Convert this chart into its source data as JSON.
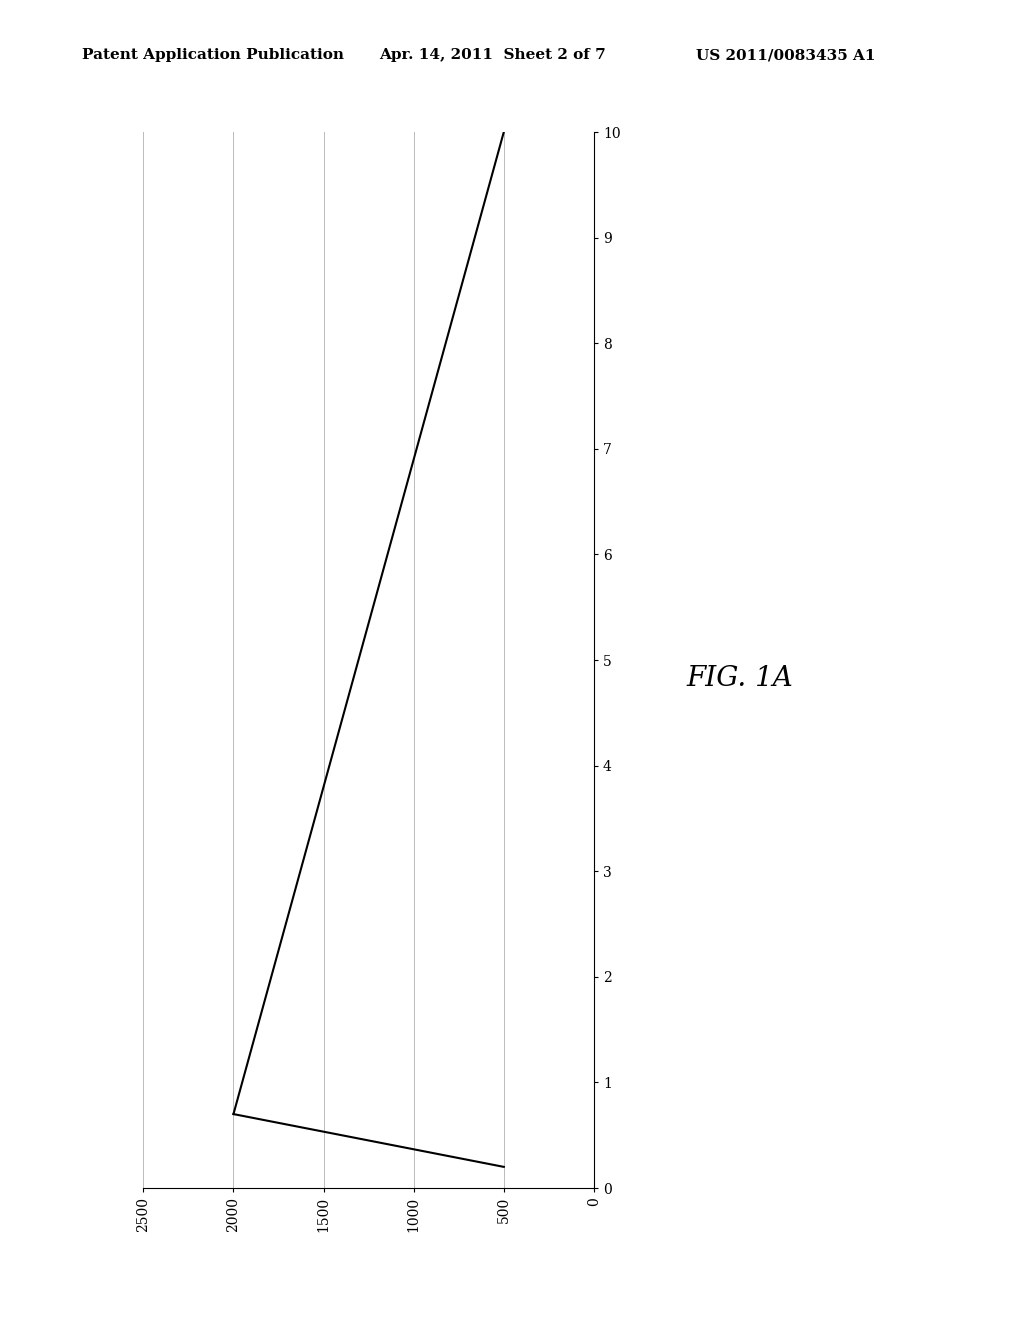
{
  "header_left": "Patent Application Publication",
  "header_middle": "Apr. 14, 2011  Sheet 2 of 7",
  "header_right": "US 2011/0083435 A1",
  "fig_label": "FIG. 1A",
  "x_ticks": [
    0,
    500,
    1000,
    1500,
    2000,
    2500
  ],
  "y_ticks": [
    0,
    1,
    2,
    3,
    4,
    5,
    6,
    7,
    8,
    9,
    10
  ],
  "xlim": [
    0,
    2500
  ],
  "ylim": [
    0,
    10
  ],
  "line1_x": [
    2000,
    500
  ],
  "line1_y": [
    0.7,
    10
  ],
  "line2_x": [
    2000,
    500
  ],
  "line2_y": [
    0.7,
    0.2
  ],
  "line_color": "#000000",
  "bg_color": "#ffffff",
  "grid_color": "#bbbbbb",
  "header_fontsize": 11,
  "fig_label_fontsize": 20,
  "tick_fontsize": 10
}
